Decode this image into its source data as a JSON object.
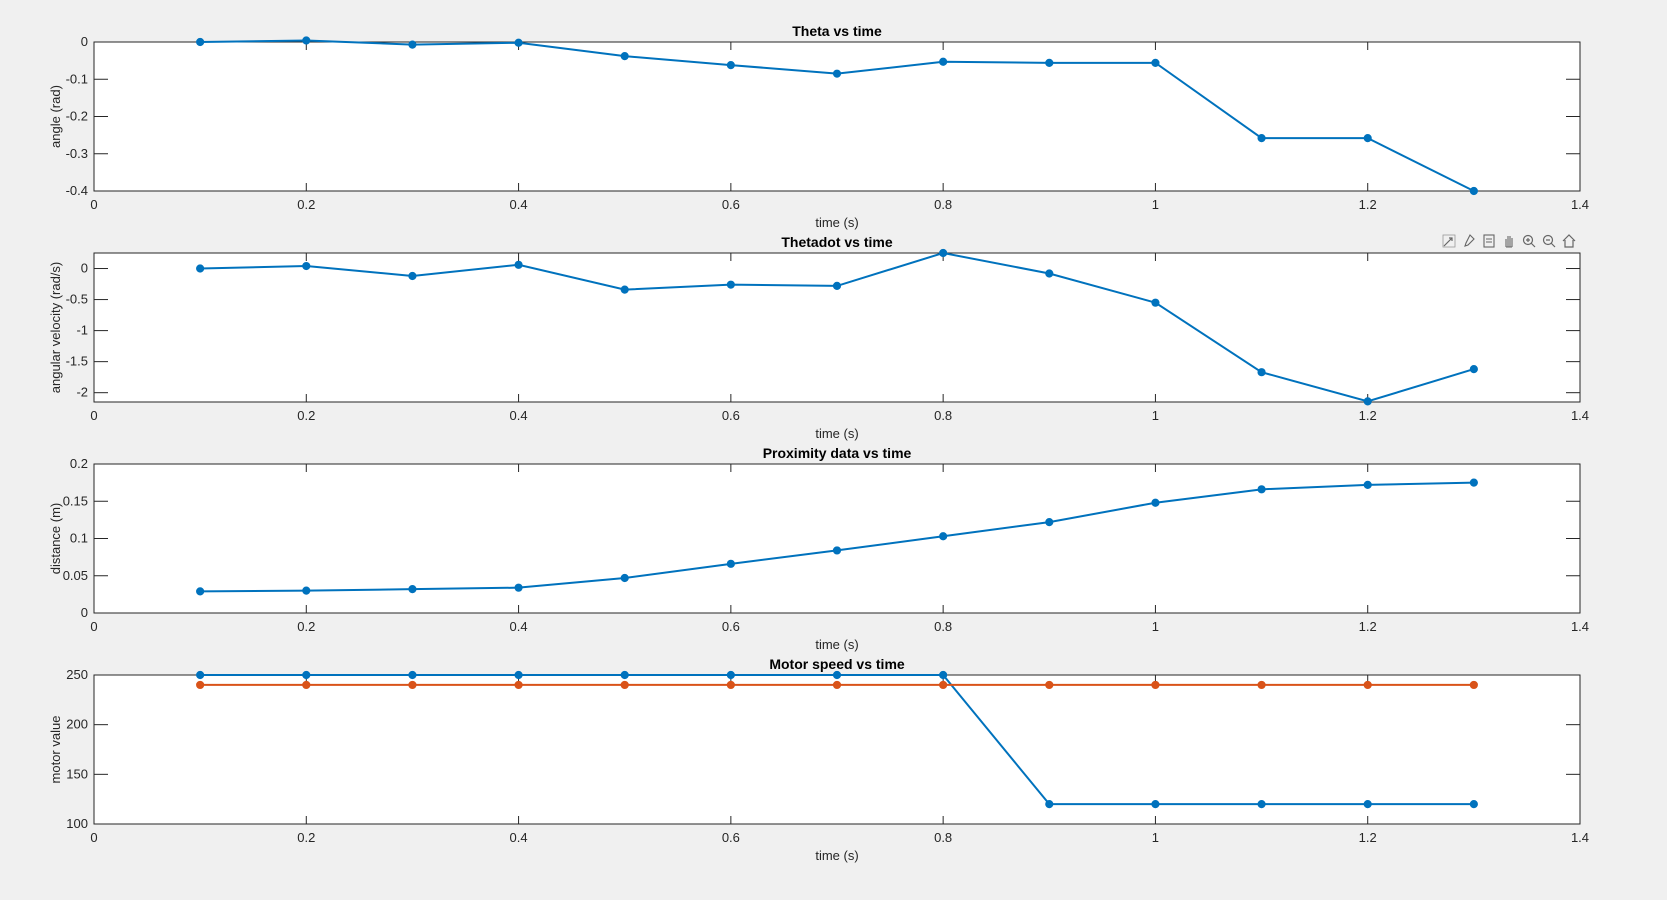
{
  "figure": {
    "background": "#f0f0f0",
    "series_colors": [
      "#0072bd",
      "#d95319"
    ]
  },
  "toolbar": {
    "icons": [
      "export-icon",
      "brush-icon",
      "datatip-icon",
      "pan-icon",
      "zoom-in-icon",
      "zoom-out-icon",
      "home-icon"
    ]
  },
  "chart_data": [
    {
      "type": "line",
      "title": "Theta vs time",
      "xlabel": "time (s)",
      "ylabel": "angle (rad)",
      "xlim": [
        0,
        1.4
      ],
      "ylim": [
        -0.4,
        0
      ],
      "xticks": [
        "0",
        "0.2",
        "0.4",
        "0.6",
        "0.8",
        "1",
        "1.2",
        "1.4"
      ],
      "yticks": [
        "0",
        "-0.1",
        "-0.2",
        "-0.3",
        "-0.4"
      ],
      "x": [
        0.1,
        0.2,
        0.3,
        0.4,
        0.5,
        0.6,
        0.7,
        0.8,
        0.9,
        1.0,
        1.1,
        1.2,
        1.3
      ],
      "series": [
        {
          "values": [
            0,
            0.004,
            -0.007,
            -0.002,
            -0.038,
            -0.062,
            -0.085,
            -0.053,
            -0.056,
            -0.056,
            -0.258,
            -0.258,
            -0.4
          ]
        }
      ]
    },
    {
      "type": "line",
      "title": "Thetadot vs time",
      "xlabel": "time (s)",
      "ylabel": "angular velocity (rad/s)",
      "xlim": [
        0,
        1.4
      ],
      "ylim": [
        -2.15,
        0.25
      ],
      "xticks": [
        "0",
        "0.2",
        "0.4",
        "0.6",
        "0.8",
        "1",
        "1.2",
        "1.4"
      ],
      "yticks": [
        "0",
        "-0.5",
        "-1",
        "-1.5",
        "-2"
      ],
      "x": [
        0.1,
        0.2,
        0.3,
        0.4,
        0.5,
        0.6,
        0.7,
        0.8,
        0.9,
        1.0,
        1.1,
        1.2,
        1.3
      ],
      "series": [
        {
          "values": [
            0.0,
            0.04,
            -0.12,
            0.06,
            -0.34,
            -0.26,
            -0.28,
            0.25,
            -0.08,
            -0.55,
            -1.67,
            -2.14,
            -1.62
          ]
        }
      ]
    },
    {
      "type": "line",
      "title": "Proximity data vs time",
      "xlabel": "time (s)",
      "ylabel": "distance (m)",
      "xlim": [
        0,
        1.4
      ],
      "ylim": [
        0,
        0.2
      ],
      "xticks": [
        "0",
        "0.2",
        "0.4",
        "0.6",
        "0.8",
        "1",
        "1.2",
        "1.4"
      ],
      "yticks": [
        "0",
        "0.05",
        "0.1",
        "0.15",
        "0.2"
      ],
      "x": [
        0.1,
        0.2,
        0.3,
        0.4,
        0.5,
        0.6,
        0.7,
        0.8,
        0.9,
        1.0,
        1.1,
        1.2,
        1.3
      ],
      "series": [
        {
          "values": [
            0.029,
            0.03,
            0.032,
            0.034,
            0.047,
            0.066,
            0.084,
            0.103,
            0.122,
            0.148,
            0.166,
            0.172,
            0.175
          ]
        }
      ]
    },
    {
      "type": "line",
      "title": "Motor speed vs time",
      "xlabel": "time (s)",
      "ylabel": "motor value",
      "xlim": [
        0,
        1.4
      ],
      "ylim": [
        100,
        250
      ],
      "xticks": [
        "0",
        "0.2",
        "0.4",
        "0.6",
        "0.8",
        "1",
        "1.2",
        "1.4"
      ],
      "yticks": [
        "100",
        "150",
        "200",
        "250"
      ],
      "x": [
        0.1,
        0.2,
        0.3,
        0.4,
        0.5,
        0.6,
        0.7,
        0.8,
        0.9,
        1.0,
        1.1,
        1.2,
        1.3
      ],
      "series": [
        {
          "values": [
            250,
            250,
            250,
            250,
            250,
            250,
            250,
            250,
            120,
            120,
            120,
            120,
            120
          ]
        },
        {
          "values": [
            240,
            240,
            240,
            240,
            240,
            240,
            240,
            240,
            240,
            240,
            240,
            240,
            240
          ]
        }
      ]
    }
  ]
}
